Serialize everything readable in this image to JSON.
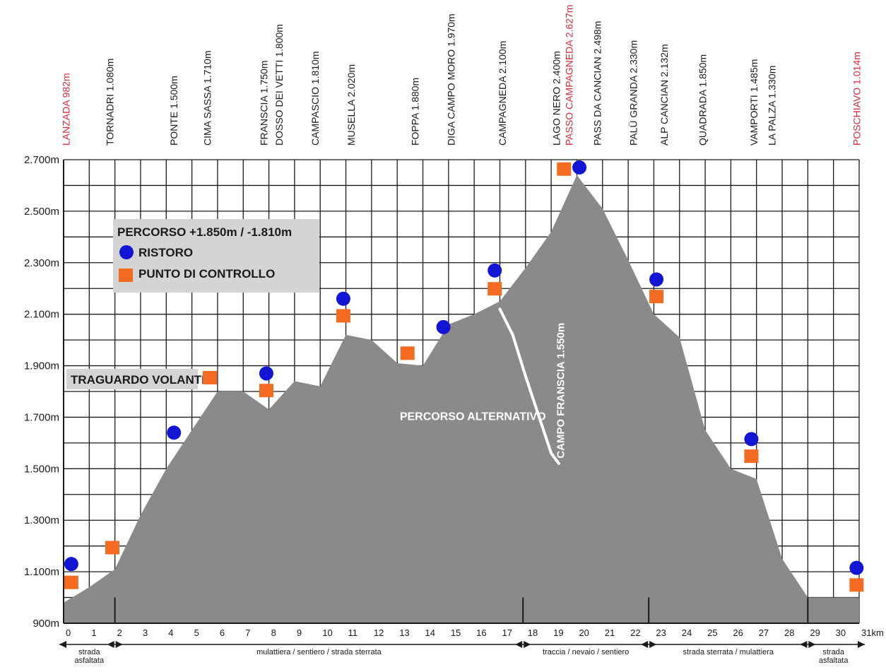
{
  "chart_data": {
    "type": "area",
    "title": "",
    "xlabel": "",
    "ylabel": "",
    "ylim": [
      900,
      2700
    ],
    "xlim": [
      0,
      31
    ],
    "y_ticks": [
      "900m",
      "1.100m",
      "1.300m",
      "1.500m",
      "1.700m",
      "1.900m",
      "2.100m",
      "2.300m",
      "2.500m",
      "2.700m"
    ],
    "y_tick_values": [
      900,
      1100,
      1300,
      1500,
      1700,
      1900,
      2100,
      2300,
      2500,
      2700
    ],
    "x_ticks": [
      "0",
      "1",
      "2",
      "3",
      "4",
      "5",
      "6",
      "7",
      "8",
      "9",
      "10",
      "11",
      "12",
      "13",
      "14",
      "15",
      "16",
      "17",
      "18",
      "19",
      "20",
      "21",
      "22",
      "23",
      "24",
      "25",
      "26",
      "27",
      "28",
      "29",
      "30",
      "31km"
    ],
    "x_tick_values": [
      0,
      1,
      2,
      3,
      4,
      5,
      6,
      7,
      8,
      9,
      10,
      11,
      12,
      13,
      14,
      15,
      16,
      17,
      18,
      19,
      20,
      21,
      22,
      23,
      24,
      25,
      26,
      27,
      28,
      29,
      30,
      31
    ],
    "grid": true,
    "profile": {
      "x": [
        0,
        1,
        2,
        3,
        4,
        5,
        6,
        7,
        8,
        9,
        10,
        11,
        12,
        13,
        14,
        15,
        16,
        17,
        18,
        19,
        20,
        21,
        22,
        23,
        24,
        25,
        26,
        27,
        28,
        29,
        30,
        31
      ],
      "y": [
        980,
        1040,
        1110,
        1320,
        1500,
        1650,
        1800,
        1800,
        1730,
        1840,
        1820,
        2020,
        2000,
        1910,
        1900,
        2060,
        2100,
        2150,
        2280,
        2420,
        2640,
        2510,
        2310,
        2100,
        2010,
        1650,
        1500,
        1460,
        1150,
        1000,
        1000,
        1000
      ]
    },
    "alternative_route": {
      "label": "PERCORSO ALTERNATIVO",
      "x": [
        17,
        17.5,
        18,
        18.5,
        19,
        19.3
      ],
      "y": [
        2120,
        2020,
        1860,
        1710,
        1560,
        1520
      ]
    },
    "places": [
      {
        "label": "LANZADA 982m",
        "x": 0.1,
        "highlight": true
      },
      {
        "label": "TORNADRI 1.080m",
        "x": 1.8,
        "highlight": false
      },
      {
        "label": "PONTE 1.500m",
        "x": 4.3,
        "highlight": false
      },
      {
        "label": "CIMA SASSA 1.710m",
        "x": 5.6,
        "highlight": false
      },
      {
        "label": "FRANSCIA 1.750m",
        "x": 7.8,
        "highlight": false
      },
      {
        "label": "DOSSO DEI VETTI 1.800m",
        "x": 8.4,
        "highlight": false
      },
      {
        "label": "CAMPASCIO 1.810m",
        "x": 9.8,
        "highlight": false
      },
      {
        "label": "MUSELLA 2.020m",
        "x": 11.2,
        "highlight": false
      },
      {
        "label": "FOPPA 1.880m",
        "x": 13.7,
        "highlight": false
      },
      {
        "label": "DIGA CAMPO MORO 1.970m",
        "x": 15.1,
        "highlight": false
      },
      {
        "label": "CAMPAGNEDA 2.100m",
        "x": 17.1,
        "highlight": false
      },
      {
        "label": "LAGO NERO 2.400m",
        "x": 19.2,
        "highlight": false
      },
      {
        "label": "PASSO CAMPAGNEDA 2.627m",
        "x": 19.7,
        "highlight": true
      },
      {
        "label": "PASS DA CANCIAN 2.498m",
        "x": 20.8,
        "highlight": false
      },
      {
        "label": "PALÜ GRANDA 2.330m",
        "x": 22.2,
        "highlight": false
      },
      {
        "label": "ALP CANCIAN 2.132m",
        "x": 23.4,
        "highlight": false
      },
      {
        "label": "QUADRADA 1.850m",
        "x": 24.9,
        "highlight": false
      },
      {
        "label": "VAMPORTI 1.485m",
        "x": 26.9,
        "highlight": false
      },
      {
        "label": "LA PALZA 1.330m",
        "x": 27.6,
        "highlight": false
      },
      {
        "label": "POSCHIAVO 1.014m",
        "x": 30.9,
        "highlight": true
      }
    ],
    "ristoro_points": [
      {
        "x": 0.3,
        "y": 1130
      },
      {
        "x": 4.3,
        "y": 1640
      },
      {
        "x": 7.9,
        "y": 1870
      },
      {
        "x": 10.9,
        "y": 2160
      },
      {
        "x": 14.8,
        "y": 2050
      },
      {
        "x": 16.8,
        "y": 2270
      },
      {
        "x": 20.1,
        "y": 2670
      },
      {
        "x": 23.1,
        "y": 2235
      },
      {
        "x": 26.8,
        "y": 1615
      },
      {
        "x": 30.9,
        "y": 1115
      }
    ],
    "controllo_points": [
      {
        "x": 0.3,
        "y": 1060
      },
      {
        "x": 1.9,
        "y": 1195
      },
      {
        "x": 5.7,
        "y": 1855
      },
      {
        "x": 7.9,
        "y": 1805
      },
      {
        "x": 10.9,
        "y": 2095
      },
      {
        "x": 13.4,
        "y": 1950
      },
      {
        "x": 16.8,
        "y": 2200
      },
      {
        "x": 19.5,
        "y": 2665
      },
      {
        "x": 23.1,
        "y": 2170
      },
      {
        "x": 26.8,
        "y": 1550
      },
      {
        "x": 30.9,
        "y": 1050
      }
    ],
    "legend": {
      "title": "PERCORSO +1.850m / -1.810m",
      "ristoro": "RISTORO",
      "controllo": "PUNTO DI CONTROLLO",
      "placement": "top-left"
    },
    "annotations": {
      "traguardo": "TRAGUARDO VOLANTE",
      "campo": "CAMPO FRANSCIA 1.550m"
    },
    "segments": [
      {
        "label": [
          "strada",
          "asfaltata"
        ],
        "from": 0,
        "to": 2
      },
      {
        "label": [
          "mulattiera / sentiero / strada sterrata"
        ],
        "from": 2,
        "to": 17.9
      },
      {
        "label": [
          "traccia / nevaio / sentiero"
        ],
        "from": 17.9,
        "to": 22.8
      },
      {
        "label": [
          "strada sterrata / mulattiera"
        ],
        "from": 22.8,
        "to": 29
      },
      {
        "label": [
          "strada",
          "asfaltata"
        ],
        "from": 29,
        "to": 31
      }
    ],
    "colors": {
      "profile": "#8a8a8a",
      "grid": "#1a1a1a",
      "ristoro": "#1414d4",
      "controllo": "#f26b21",
      "highlight_text": "#d9283a",
      "legend_box": "#d4d4d4",
      "text": "#1a1a1a"
    }
  }
}
